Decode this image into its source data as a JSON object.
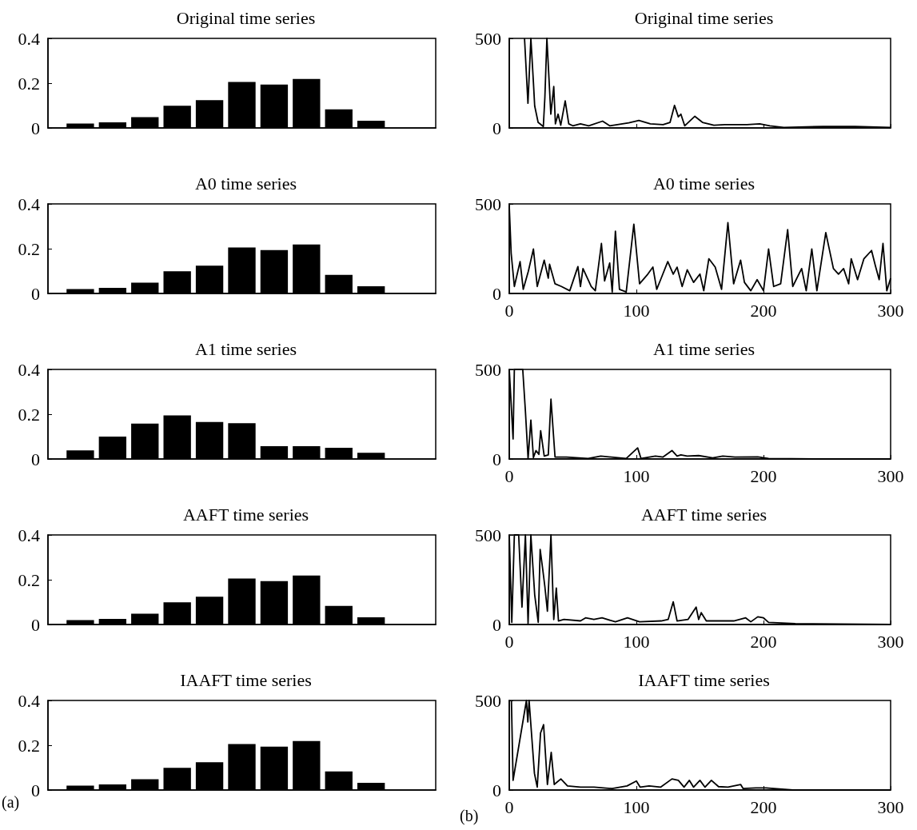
{
  "chart_data": [
    {
      "type": "bar",
      "title": "Original time series",
      "categories": [
        null,
        null,
        null,
        null,
        null,
        null,
        null,
        null,
        null,
        null,
        null,
        null,
        null
      ],
      "values": [
        null,
        0.02,
        0.025,
        0.048,
        0.099,
        0.124,
        0.205,
        0.194,
        0.219,
        0.083,
        0.032,
        null,
        null
      ],
      "color": "#000000",
      "ylim": [
        0,
        0.4
      ],
      "yticks": [
        0,
        0.2,
        0.4
      ],
      "tick_labels": "y"
    },
    {
      "type": "line",
      "title": "Original time series",
      "x": [
        12,
        14.7,
        17,
        19,
        20,
        22.7,
        26.8,
        28,
        29.6,
        32.7,
        35,
        36.3,
        38.4,
        40.5,
        44,
        46.8,
        50,
        56,
        62.5,
        73.4,
        79,
        94,
        102,
        111,
        121,
        126.5,
        130,
        133,
        135,
        138,
        146,
        152,
        161,
        169.5,
        187,
        197,
        205,
        216,
        247,
        272,
        300
      ],
      "values": [
        500,
        138,
        500,
        254,
        123,
        31,
        8,
        169,
        500,
        77,
        231,
        23,
        77,
        15,
        151,
        23,
        12,
        23,
        12,
        38,
        12,
        28,
        42,
        23,
        18,
        31,
        126,
        62,
        77,
        12,
        65,
        31,
        15,
        18,
        18,
        23,
        12,
        3,
        8,
        8,
        3
      ],
      "color": "#000000",
      "xlim": [
        0,
        300
      ],
      "xticks": [
        0,
        100,
        200,
        300
      ],
      "ylim": [
        0,
        500
      ],
      "yticks": [
        0,
        500
      ],
      "tick_labels": "y"
    },
    {
      "type": "bar",
      "title": "A0 time series",
      "categories": [
        null,
        null,
        null,
        null,
        null,
        null,
        null,
        null,
        null,
        null,
        null,
        null,
        null
      ],
      "values": [
        null,
        0.02,
        0.025,
        0.048,
        0.099,
        0.124,
        0.205,
        0.194,
        0.219,
        0.083,
        0.032,
        null,
        null
      ],
      "color": "#000000",
      "ylim": [
        0,
        0.4
      ],
      "yticks": [
        0,
        0.2,
        0.4
      ],
      "tick_labels": "y"
    },
    {
      "type": "line",
      "title": "A0 time series",
      "x": [
        0,
        1.5,
        4,
        8.5,
        11,
        15,
        19,
        22,
        27.5,
        30.7,
        31.7,
        36,
        41,
        47.6,
        54,
        56,
        58,
        64.5,
        67.7,
        72.5,
        75,
        79,
        81,
        83.5,
        86.7,
        92,
        98,
        102.5,
        109,
        113,
        116,
        119.5,
        124.7,
        129,
        132,
        136,
        140,
        145,
        150,
        153,
        157,
        162,
        167,
        172,
        176.5,
        182,
        185,
        190,
        195,
        200,
        204,
        208,
        213.5,
        219,
        223,
        230,
        233.6,
        238,
        242,
        249,
        255,
        259,
        263,
        267,
        269,
        274,
        279,
        285,
        288,
        291,
        294,
        297,
        300
      ],
      "values": [
        487,
        224,
        39,
        178,
        23,
        124,
        248,
        39,
        186,
        85,
        163,
        54,
        39,
        15,
        150,
        39,
        139,
        39,
        15,
        279,
        70,
        170,
        8,
        348,
        23,
        8,
        387,
        54,
        108,
        147,
        23,
        85,
        178,
        108,
        147,
        39,
        132,
        62,
        108,
        15,
        194,
        147,
        23,
        395,
        54,
        186,
        62,
        15,
        77,
        15,
        248,
        39,
        54,
        356,
        39,
        139,
        15,
        248,
        15,
        340,
        139,
        108,
        139,
        54,
        194,
        77,
        194,
        240,
        155,
        77,
        279,
        15,
        85
      ],
      "color": "#000000",
      "xlim": [
        0,
        300
      ],
      "xticks": [
        0,
        100,
        200,
        300
      ],
      "ylim": [
        0,
        500
      ],
      "yticks": [
        0,
        500
      ]
    },
    {
      "type": "bar",
      "title": "A1 time series",
      "categories": [
        null,
        null,
        null,
        null,
        null,
        null,
        null,
        null,
        null,
        null,
        null,
        null,
        null
      ],
      "values": [
        null,
        0.038,
        0.1,
        0.158,
        0.195,
        0.165,
        0.16,
        0.057,
        0.057,
        0.05,
        0.028,
        null,
        null
      ],
      "color": "#000000",
      "ylim": [
        0,
        0.4
      ],
      "yticks": [
        0,
        0.2,
        0.4
      ],
      "tick_labels": "y"
    },
    {
      "type": "line",
      "title": "A1 time series",
      "x": [
        0,
        3,
        4,
        10.6,
        12.7,
        14.8,
        17,
        19,
        21,
        23.3,
        24.7,
        27.5,
        30.7,
        32.8,
        36,
        45,
        62,
        72,
        92,
        101,
        103.6,
        115,
        121,
        128,
        132,
        135,
        140,
        149,
        160,
        168,
        177.6,
        195.5,
        204,
        246,
        300
      ],
      "values": [
        500,
        112,
        500,
        500,
        267,
        3,
        217,
        8,
        47,
        26,
        158,
        16,
        23,
        334,
        11,
        11,
        3,
        16,
        3,
        62,
        3,
        16,
        11,
        47,
        16,
        23,
        16,
        19,
        6,
        16,
        11,
        12,
        3,
        0,
        0
      ],
      "color": "#000000",
      "xlim": [
        0,
        300
      ],
      "xticks": [
        0,
        100,
        200,
        300
      ],
      "ylim": [
        0,
        500
      ],
      "yticks": [
        0,
        500
      ]
    },
    {
      "type": "bar",
      "title": "AAFT time series",
      "categories": [
        null,
        null,
        null,
        null,
        null,
        null,
        null,
        null,
        null,
        null,
        null,
        null,
        null
      ],
      "values": [
        null,
        0.02,
        0.025,
        0.048,
        0.099,
        0.124,
        0.205,
        0.194,
        0.219,
        0.083,
        0.032,
        null,
        null
      ],
      "color": "#000000",
      "ylim": [
        0,
        0.4
      ],
      "yticks": [
        0,
        0.2,
        0.4
      ],
      "tick_labels": "y"
    },
    {
      "type": "line",
      "title": "AAFT time series",
      "x": [
        0,
        2,
        4,
        7.4,
        10,
        12.7,
        14.8,
        17,
        20,
        22.8,
        24.3,
        26.4,
        28,
        30,
        32.8,
        35,
        37,
        38.7,
        43,
        56,
        60,
        66.6,
        73,
        83.5,
        93,
        102.5,
        119.5,
        125,
        129,
        132,
        140.6,
        147,
        149,
        151,
        155,
        165,
        176.6,
        186,
        190,
        195.5,
        200,
        204,
        225,
        300
      ],
      "values": [
        500,
        12,
        500,
        500,
        97,
        500,
        5,
        500,
        166,
        12,
        419,
        304,
        212,
        74,
        500,
        28,
        204,
        20,
        28,
        20,
        37,
        28,
        37,
        15,
        37,
        15,
        20,
        28,
        127,
        20,
        28,
        97,
        28,
        66,
        20,
        20,
        20,
        37,
        15,
        43,
        37,
        12,
        5,
        0
      ],
      "color": "#000000",
      "xlim": [
        0,
        300
      ],
      "xticks": [
        0,
        100,
        200,
        300
      ],
      "ylim": [
        0,
        500
      ],
      "yticks": [
        0,
        500
      ]
    },
    {
      "type": "bar",
      "title": "IAAFT time series",
      "categories": [
        null,
        null,
        null,
        null,
        null,
        null,
        null,
        null,
        null,
        null,
        null,
        null,
        null
      ],
      "values": [
        null,
        0.02,
        0.025,
        0.048,
        0.099,
        0.124,
        0.205,
        0.194,
        0.219,
        0.083,
        0.032,
        null,
        null
      ],
      "color": "#000000",
      "ylim": [
        0,
        0.4
      ],
      "yticks": [
        0,
        0.2,
        0.4
      ],
      "tick_labels": "y",
      "annotations": [
        "(a)"
      ]
    },
    {
      "type": "line",
      "title": "IAAFT time series",
      "x": [
        1.7,
        3,
        13.5,
        14.6,
        15.6,
        19.8,
        22,
        24.6,
        27,
        30,
        33,
        35.4,
        40.6,
        45.8,
        56,
        66.7,
        81,
        92.7,
        100,
        103,
        110,
        119,
        128,
        133,
        137.5,
        141.7,
        145,
        150,
        154,
        159,
        164.6,
        172,
        182,
        184,
        194,
        202,
        223,
        300
      ],
      "values": [
        500,
        54,
        500,
        380,
        500,
        93,
        16,
        318,
        365,
        31,
        210,
        31,
        62,
        23,
        16,
        16,
        8,
        23,
        50,
        16,
        23,
        16,
        62,
        54,
        16,
        54,
        16,
        54,
        16,
        54,
        19,
        16,
        31,
        8,
        12,
        12,
        0,
        0
      ],
      "color": "#000000",
      "xlim": [
        0,
        300
      ],
      "xticks": [
        0,
        100,
        200,
        300
      ],
      "ylim": [
        0,
        500
      ],
      "yticks": [
        0,
        500
      ],
      "annotations": [
        "(b)"
      ]
    }
  ]
}
